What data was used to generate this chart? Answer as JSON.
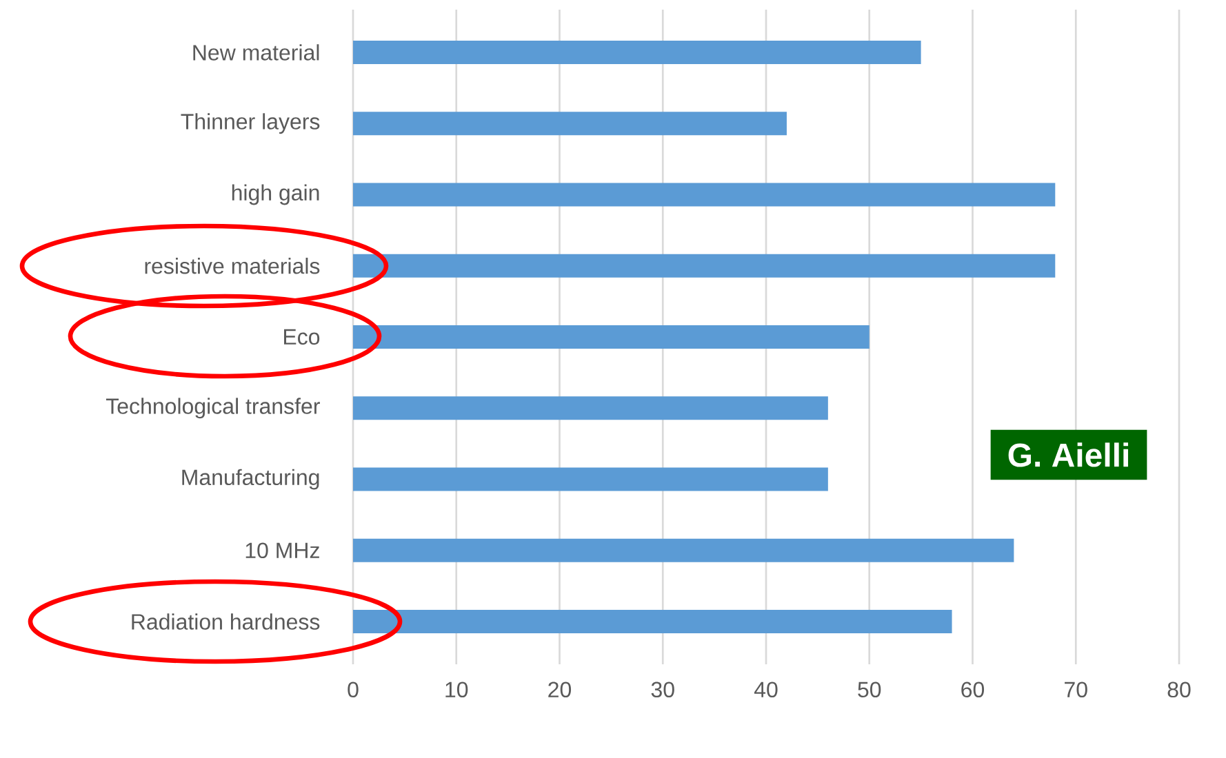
{
  "chart_data": {
    "type": "bar",
    "orientation": "horizontal",
    "categories": [
      "New material",
      "Thinner layers",
      "high gain",
      "resistive materials",
      "Eco",
      "Technological transfer",
      "Manufacturing",
      "10 MHz",
      "Radiation hardness"
    ],
    "values": [
      55,
      42,
      68,
      68,
      50,
      46,
      46,
      64,
      58
    ],
    "color": "#5b9bd5",
    "xlim": [
      0,
      80
    ],
    "xticks": [
      0,
      10,
      20,
      30,
      40,
      50,
      60,
      70,
      80
    ],
    "grid": "x",
    "annotations": [
      "G. Aielli"
    ]
  }
}
